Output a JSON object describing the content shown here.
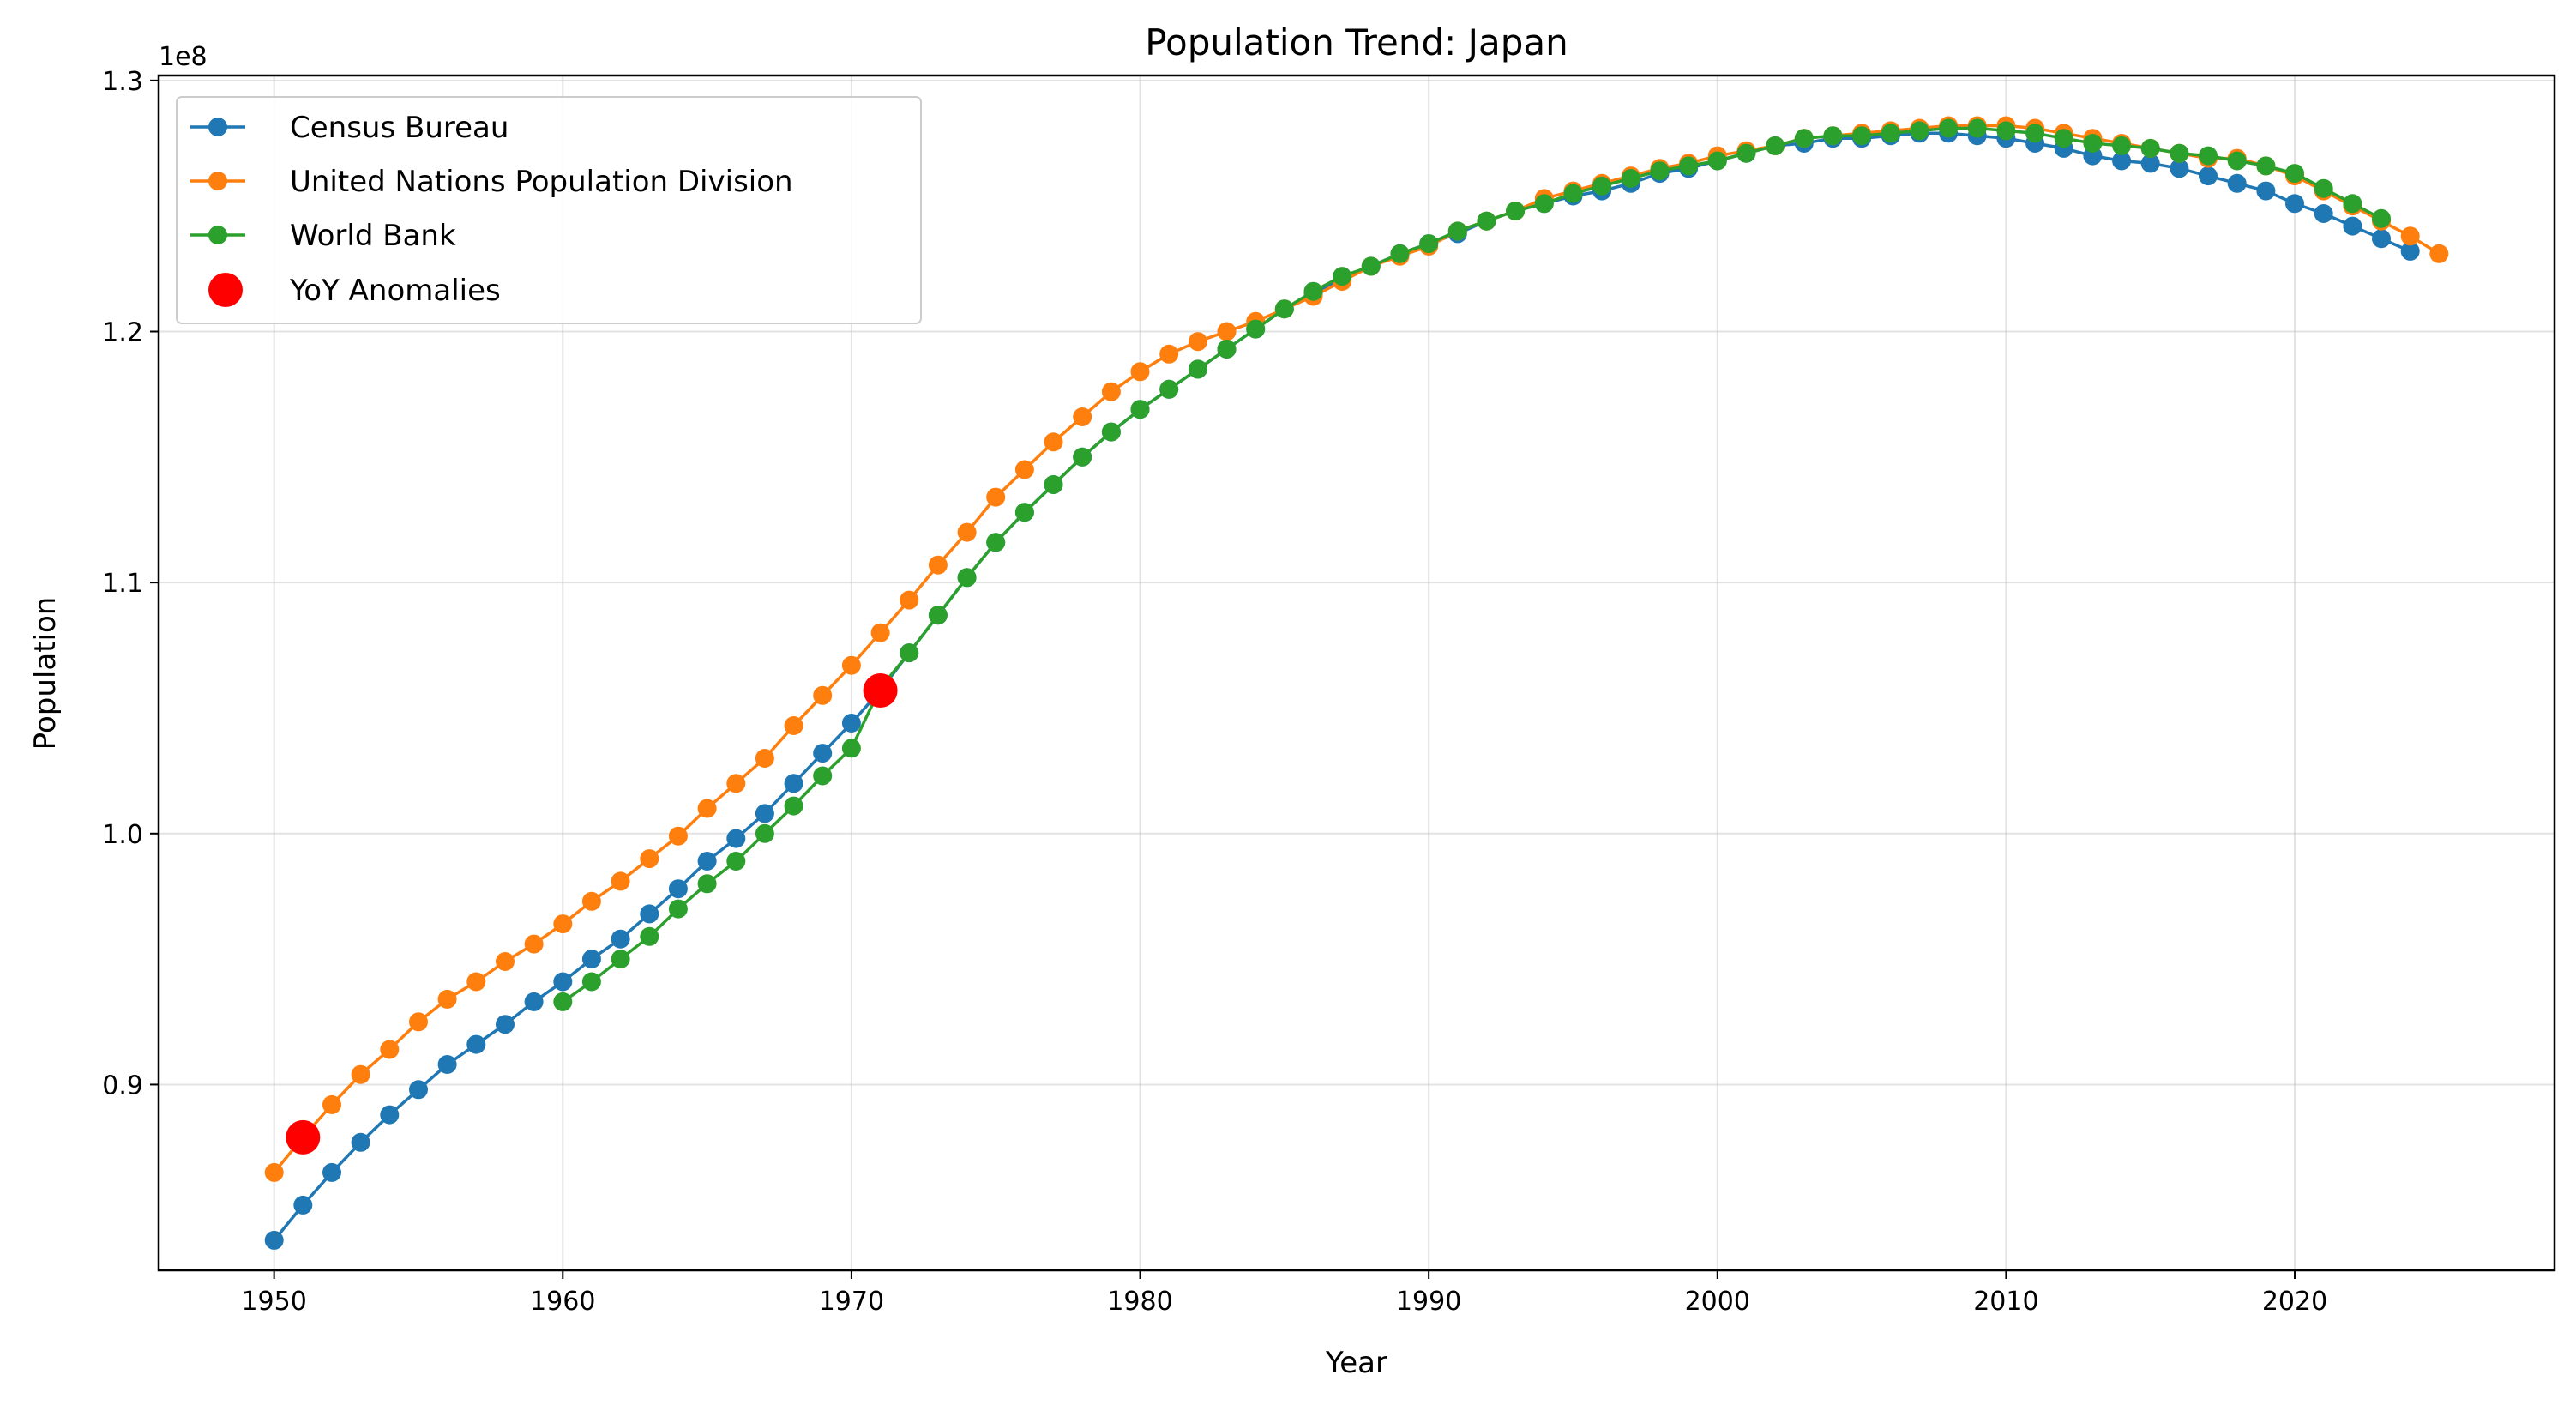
{
  "chart_data": {
    "type": "line",
    "title": "Population Trend: Japan",
    "xlabel": "Year",
    "ylabel": "Population",
    "offset_label": "1e8",
    "xlim": [
      1946,
      2029
    ],
    "ylim": [
      0.826,
      1.302
    ],
    "x_ticks": [
      1950,
      1960,
      1970,
      1980,
      1990,
      2000,
      2010,
      2020
    ],
    "x_tick_labels": [
      "1950",
      "1960",
      "1970",
      "1980",
      "1990",
      "2000",
      "2010",
      "2020"
    ],
    "y_ticks": [
      0.9,
      1.0,
      1.1,
      1.2,
      1.3
    ],
    "y_tick_labels": [
      "0.9",
      "1.0",
      "1.1",
      "1.2",
      "1.3"
    ],
    "grid": true,
    "legend_position": "upper-left",
    "series": [
      {
        "name": "Census Bureau",
        "color": "#1f77b4",
        "x": [
          1950,
          1951,
          1952,
          1953,
          1954,
          1955,
          1956,
          1957,
          1958,
          1959,
          1960,
          1961,
          1962,
          1963,
          1964,
          1965,
          1966,
          1967,
          1968,
          1969,
          1970,
          1971,
          1972,
          1973,
          1974,
          1975,
          1976,
          1977,
          1978,
          1979,
          1980,
          1981,
          1982,
          1983,
          1984,
          1985,
          1986,
          1987,
          1988,
          1989,
          1990,
          1991,
          1992,
          1993,
          1994,
          1995,
          1996,
          1997,
          1998,
          1999,
          2000,
          2001,
          2002,
          2003,
          2004,
          2005,
          2006,
          2007,
          2008,
          2009,
          2010,
          2011,
          2012,
          2013,
          2014,
          2015,
          2016,
          2017,
          2018,
          2019,
          2020,
          2021,
          2022,
          2023,
          2024
        ],
        "y": [
          0.838,
          0.852,
          0.865,
          0.877,
          0.888,
          0.898,
          0.908,
          0.916,
          0.924,
          0.933,
          0.941,
          0.95,
          0.958,
          0.968,
          0.978,
          0.989,
          0.998,
          1.008,
          1.02,
          1.032,
          1.044,
          1.057,
          1.072,
          1.087,
          1.102,
          1.116,
          1.128,
          1.139,
          1.15,
          1.16,
          1.169,
          1.177,
          1.185,
          1.193,
          1.201,
          1.209,
          1.215,
          1.221,
          1.226,
          1.231,
          1.235,
          1.239,
          1.244,
          1.248,
          1.251,
          1.254,
          1.256,
          1.259,
          1.263,
          1.265,
          1.268,
          1.271,
          1.274,
          1.275,
          1.277,
          1.277,
          1.278,
          1.279,
          1.279,
          1.278,
          1.277,
          1.275,
          1.273,
          1.27,
          1.268,
          1.267,
          1.265,
          1.262,
          1.259,
          1.256,
          1.251,
          1.247,
          1.242,
          1.237,
          1.232
        ]
      },
      {
        "name": "United Nations Population Division",
        "color": "#ff7f0e",
        "x": [
          1950,
          1951,
          1952,
          1953,
          1954,
          1955,
          1956,
          1957,
          1958,
          1959,
          1960,
          1961,
          1962,
          1963,
          1964,
          1965,
          1966,
          1967,
          1968,
          1969,
          1970,
          1971,
          1972,
          1973,
          1974,
          1975,
          1976,
          1977,
          1978,
          1979,
          1980,
          1981,
          1982,
          1983,
          1984,
          1985,
          1986,
          1987,
          1988,
          1989,
          1990,
          1991,
          1992,
          1993,
          1994,
          1995,
          1996,
          1997,
          1998,
          1999,
          2000,
          2001,
          2002,
          2003,
          2004,
          2005,
          2006,
          2007,
          2008,
          2009,
          2010,
          2011,
          2012,
          2013,
          2014,
          2015,
          2016,
          2017,
          2018,
          2019,
          2020,
          2021,
          2022,
          2023,
          2024,
          2025
        ],
        "y": [
          0.865,
          0.879,
          0.892,
          0.904,
          0.914,
          0.925,
          0.934,
          0.941,
          0.949,
          0.956,
          0.964,
          0.973,
          0.981,
          0.99,
          0.999,
          1.01,
          1.02,
          1.03,
          1.043,
          1.055,
          1.067,
          1.08,
          1.093,
          1.107,
          1.12,
          1.134,
          1.145,
          1.156,
          1.166,
          1.176,
          1.184,
          1.191,
          1.196,
          1.2,
          1.204,
          1.209,
          1.214,
          1.22,
          1.226,
          1.23,
          1.234,
          1.24,
          1.244,
          1.248,
          1.253,
          1.256,
          1.259,
          1.262,
          1.265,
          1.267,
          1.27,
          1.272,
          1.274,
          1.277,
          1.278,
          1.279,
          1.28,
          1.281,
          1.282,
          1.282,
          1.282,
          1.281,
          1.279,
          1.277,
          1.275,
          1.273,
          1.271,
          1.269,
          1.269,
          1.266,
          1.262,
          1.256,
          1.25,
          1.244,
          1.238,
          1.231
        ]
      },
      {
        "name": "World Bank",
        "color": "#2ca02c",
        "x": [
          1960,
          1961,
          1962,
          1963,
          1964,
          1965,
          1966,
          1967,
          1968,
          1969,
          1970,
          1971,
          1972,
          1973,
          1974,
          1975,
          1976,
          1977,
          1978,
          1979,
          1980,
          1981,
          1982,
          1983,
          1984,
          1985,
          1986,
          1987,
          1988,
          1989,
          1990,
          1991,
          1992,
          1993,
          1994,
          1995,
          1996,
          1997,
          1998,
          1999,
          2000,
          2001,
          2002,
          2003,
          2004,
          2005,
          2006,
          2007,
          2008,
          2009,
          2010,
          2011,
          2012,
          2013,
          2014,
          2015,
          2016,
          2017,
          2018,
          2019,
          2020,
          2021,
          2022,
          2023
        ],
        "y": [
          0.933,
          0.941,
          0.95,
          0.959,
          0.97,
          0.98,
          0.989,
          1.0,
          1.011,
          1.023,
          1.034,
          1.058,
          1.072,
          1.087,
          1.102,
          1.116,
          1.128,
          1.139,
          1.15,
          1.16,
          1.169,
          1.177,
          1.185,
          1.193,
          1.201,
          1.209,
          1.216,
          1.222,
          1.226,
          1.231,
          1.235,
          1.24,
          1.244,
          1.248,
          1.251,
          1.255,
          1.258,
          1.261,
          1.264,
          1.266,
          1.268,
          1.271,
          1.274,
          1.277,
          1.278,
          1.278,
          1.279,
          1.28,
          1.281,
          1.281,
          1.28,
          1.279,
          1.277,
          1.275,
          1.274,
          1.273,
          1.271,
          1.27,
          1.268,
          1.266,
          1.263,
          1.257,
          1.251,
          1.245
        ]
      }
    ],
    "anomalies": {
      "name": "YoY Anomalies",
      "color": "#ff0000",
      "points": [
        {
          "x": 1951,
          "y": 0.879
        },
        {
          "x": 1971,
          "y": 1.057
        }
      ]
    }
  }
}
